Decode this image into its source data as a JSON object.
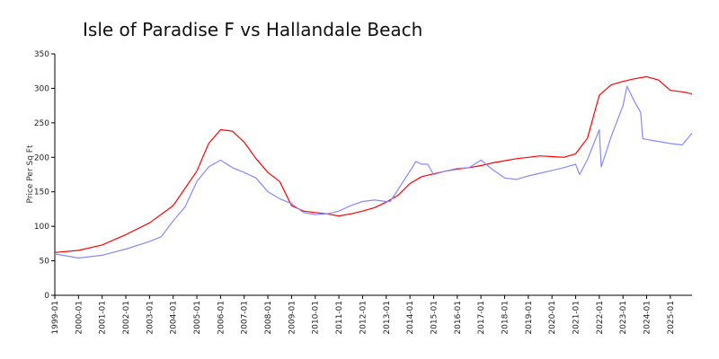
{
  "chart_data": {
    "type": "line",
    "title": "Isle of Paradise F vs Hallandale Beach",
    "xlabel": "",
    "ylabel": "Price Per Sq Ft",
    "ylim": [
      0,
      350
    ],
    "xlim": [
      "1999-01",
      "2025-12"
    ],
    "grid": false,
    "legend": "none",
    "yticks": [
      0,
      50,
      100,
      150,
      200,
      250,
      300,
      350
    ],
    "xticks": [
      "1999-01",
      "2000-01",
      "2001-01",
      "2002-01",
      "2003-01",
      "2004-01",
      "2005-01",
      "2006-01",
      "2007-01",
      "2008-01",
      "2009-01",
      "2010-01",
      "2011-01",
      "2012-01",
      "2013-01",
      "2014-01",
      "2015-01",
      "2016-01",
      "2017-01",
      "2018-01",
      "2019-01",
      "2020-01",
      "2021-01",
      "2022-01",
      "2023-01",
      "2024-01",
      "2025-01"
    ],
    "series": [
      {
        "color": "#ff0000",
        "points": [
          [
            "1999-01",
            62
          ],
          [
            "2000-01",
            65
          ],
          [
            "2001-01",
            73
          ],
          [
            "2002-01",
            88
          ],
          [
            "2003-01",
            105
          ],
          [
            "2004-01",
            130
          ],
          [
            "2005-01",
            180
          ],
          [
            "2005-07",
            220
          ],
          [
            "2006-01",
            240
          ],
          [
            "2006-07",
            238
          ],
          [
            "2007-01",
            222
          ],
          [
            "2007-07",
            198
          ],
          [
            "2008-01",
            178
          ],
          [
            "2008-07",
            165
          ],
          [
            "2009-01",
            130
          ],
          [
            "2009-07",
            122
          ],
          [
            "2010-01",
            120
          ],
          [
            "2010-07",
            118
          ],
          [
            "2011-01",
            115
          ],
          [
            "2011-07",
            118
          ],
          [
            "2012-01",
            122
          ],
          [
            "2012-07",
            127
          ],
          [
            "2013-01",
            135
          ],
          [
            "2013-07",
            145
          ],
          [
            "2014-01",
            162
          ],
          [
            "2014-07",
            172
          ],
          [
            "2015-01",
            176
          ],
          [
            "2015-07",
            180
          ],
          [
            "2016-01",
            183
          ],
          [
            "2016-07",
            185
          ],
          [
            "2017-01",
            188
          ],
          [
            "2017-07",
            192
          ],
          [
            "2018-01",
            195
          ],
          [
            "2018-07",
            198
          ],
          [
            "2019-01",
            200
          ],
          [
            "2019-07",
            202
          ],
          [
            "2020-01",
            201
          ],
          [
            "2020-07",
            200
          ],
          [
            "2021-01",
            205
          ],
          [
            "2021-07",
            228
          ],
          [
            "2022-01",
            290
          ],
          [
            "2022-07",
            305
          ],
          [
            "2023-01",
            310
          ],
          [
            "2023-07",
            314
          ],
          [
            "2024-01",
            317
          ],
          [
            "2024-07",
            312
          ],
          [
            "2025-01",
            297
          ],
          [
            "2025-07",
            295
          ],
          [
            "2025-12",
            292
          ]
        ]
      },
      {
        "color": "#8888ff",
        "points": [
          [
            "1999-01",
            60
          ],
          [
            "2000-01",
            54
          ],
          [
            "2001-01",
            58
          ],
          [
            "2002-01",
            67
          ],
          [
            "2003-01",
            78
          ],
          [
            "2003-07",
            85
          ],
          [
            "2004-01",
            108
          ],
          [
            "2004-07",
            128
          ],
          [
            "2005-01",
            165
          ],
          [
            "2005-07",
            186
          ],
          [
            "2006-01",
            196
          ],
          [
            "2006-07",
            185
          ],
          [
            "2007-01",
            178
          ],
          [
            "2007-07",
            170
          ],
          [
            "2008-01",
            150
          ],
          [
            "2008-07",
            140
          ],
          [
            "2009-01",
            133
          ],
          [
            "2009-07",
            120
          ],
          [
            "2010-01",
            117
          ],
          [
            "2010-07",
            118
          ],
          [
            "2011-01",
            122
          ],
          [
            "2011-07",
            130
          ],
          [
            "2012-01",
            136
          ],
          [
            "2012-07",
            138
          ],
          [
            "2013-01",
            136
          ],
          [
            "2013-03",
            136
          ],
          [
            "2014-01",
            180
          ],
          [
            "2014-04",
            194
          ],
          [
            "2014-07",
            190
          ],
          [
            "2014-10",
            190
          ],
          [
            "2015-01",
            175
          ],
          [
            "2015-07",
            180
          ],
          [
            "2016-01",
            184
          ],
          [
            "2016-07",
            185
          ],
          [
            "2017-01",
            196
          ],
          [
            "2017-07",
            182
          ],
          [
            "2018-01",
            170
          ],
          [
            "2018-07",
            168
          ],
          [
            "2019-01",
            173
          ],
          [
            "2019-07",
            177
          ],
          [
            "2020-01",
            181
          ],
          [
            "2020-07",
            185
          ],
          [
            "2021-01",
            190
          ],
          [
            "2021-03",
            175
          ],
          [
            "2021-07",
            197
          ],
          [
            "2022-01",
            240
          ],
          [
            "2022-02",
            186
          ],
          [
            "2022-07",
            230
          ],
          [
            "2023-01",
            275
          ],
          [
            "2023-03",
            303
          ],
          [
            "2023-07",
            280
          ],
          [
            "2023-10",
            265
          ],
          [
            "2023-11",
            227
          ],
          [
            "2024-01",
            226
          ],
          [
            "2024-07",
            223
          ],
          [
            "2025-01",
            220
          ],
          [
            "2025-07",
            218
          ],
          [
            "2025-12",
            235
          ]
        ]
      }
    ]
  }
}
